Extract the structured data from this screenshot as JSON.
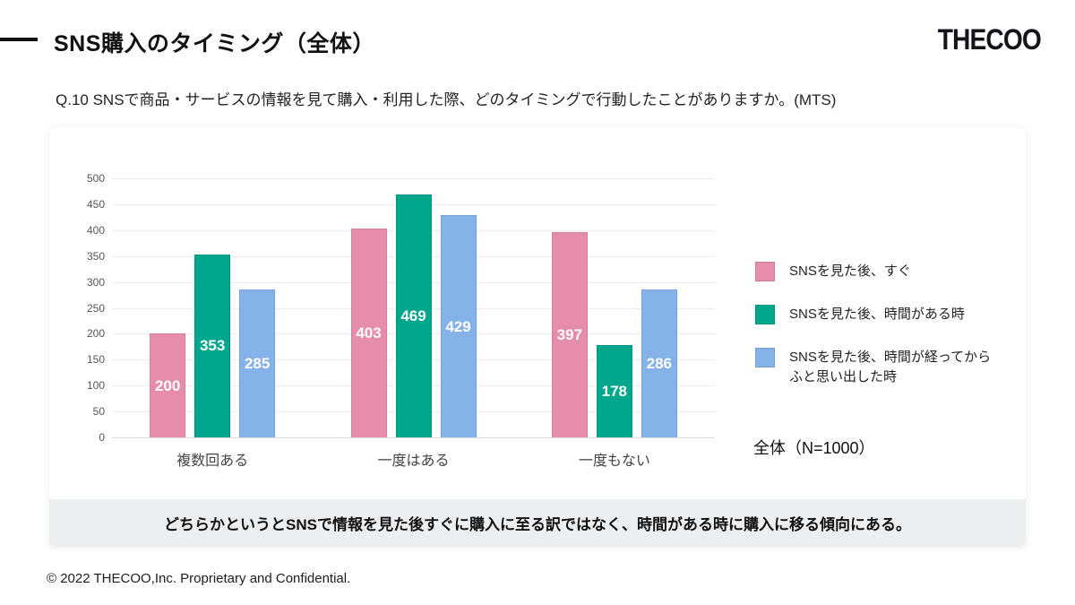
{
  "header": {
    "title": "SNS購入のタイミング（全体）",
    "logo": "THECOO"
  },
  "question": "Q.10 SNSで商品・サービスの情報を見て購入・利用した際、どのタイミングで行動したことがありますか。(MTS)",
  "chart_data": {
    "type": "bar",
    "categories": [
      "複数回ある",
      "一度はある",
      "一度もない"
    ],
    "series": [
      {
        "name": "SNSを見た後、すぐ",
        "color": "#e78dac",
        "border_color": "#d87c9d",
        "values": [
          200,
          403,
          397
        ]
      },
      {
        "name": "SNSを見た後、時間がある時",
        "color": "#00a78c",
        "border_color": "#00947b",
        "values": [
          353,
          469,
          178
        ]
      },
      {
        "name": "SNSを見た後、時間が経ってからふと思い出した時",
        "color": "#85b2e9",
        "border_color": "#72a2db",
        "values": [
          285,
          429,
          286
        ]
      }
    ],
    "title": "",
    "xlabel": "",
    "ylabel": "",
    "ylim": [
      0,
      500
    ],
    "ytick_step": 50,
    "grid": true,
    "legend_position": "right",
    "value_labels": true,
    "sample_note": "全体（N=1000）"
  },
  "note": "どちらかというとSNSで情報を見た後すぐに購入に至る訳ではなく、時間がある時に購入に移る傾向にある。",
  "footer": "© 2022 THECOO,Inc. Proprietary and Confidential."
}
